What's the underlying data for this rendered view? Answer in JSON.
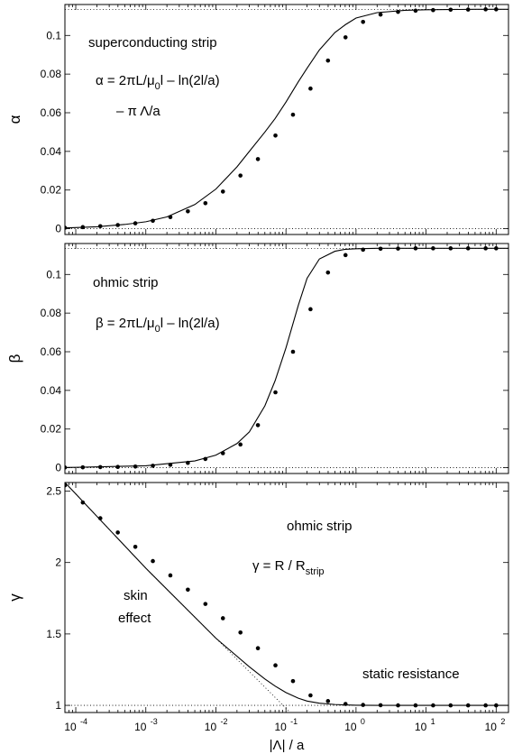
{
  "chart_data": [
    {
      "type": "line",
      "xscale": "log",
      "xlim": [
        7e-05,
        150
      ],
      "ylim": [
        -0.003,
        0.116
      ],
      "ylabel": "α",
      "yticks": [
        0,
        0.02,
        0.04,
        0.06,
        0.08,
        0.1
      ],
      "ytick_labels": [
        "0",
        "0.02",
        "0.04",
        "0.06",
        "0.08",
        "0.1"
      ],
      "reference_lines": [
        0,
        0.1135
      ],
      "annotations": [
        {
          "text": "superconducting strip"
        },
        {
          "text": "α = 2πL/μ",
          "sub": "0",
          "after": "l – ln(2l/a)"
        },
        {
          "text": "– π Λ/a"
        }
      ],
      "series": [
        {
          "style": "solid-line",
          "x": [
            7e-05,
            0.0001,
            0.0002,
            0.0005,
            0.001,
            0.002,
            0.005,
            0.01,
            0.02,
            0.03,
            0.05,
            0.07,
            0.1,
            0.15,
            0.2,
            0.3,
            0.5,
            0.7,
            1,
            2,
            5,
            10,
            20,
            50,
            100,
            150
          ],
          "y": [
            0.0004,
            0.0006,
            0.001,
            0.0022,
            0.0036,
            0.0061,
            0.0125,
            0.0205,
            0.032,
            0.04,
            0.05,
            0.057,
            0.0655,
            0.076,
            0.083,
            0.0925,
            0.1015,
            0.1055,
            0.109,
            0.1118,
            0.113,
            0.1133,
            0.1134,
            0.1135,
            0.1135,
            0.1135
          ]
        },
        {
          "style": "dots",
          "x": [
            7e-05,
            0.000126,
            0.000224,
            0.000398,
            0.000708,
            0.00126,
            0.00224,
            0.00398,
            0.00708,
            0.0126,
            0.0224,
            0.0398,
            0.0708,
            0.126,
            0.224,
            0.398,
            0.708,
            1.26,
            2.24,
            3.98,
            7.08,
            12.6,
            22.4,
            39.8,
            70.8,
            100
          ],
          "y": [
            0.0005,
            0.0008,
            0.0013,
            0.0019,
            0.0028,
            0.0041,
            0.006,
            0.009,
            0.0132,
            0.0192,
            0.0275,
            0.036,
            0.0482,
            0.059,
            0.0725,
            0.087,
            0.099,
            0.107,
            0.1108,
            0.1122,
            0.1128,
            0.1131,
            0.1133,
            0.1134,
            0.1135,
            0.1135
          ]
        }
      ]
    },
    {
      "type": "line",
      "xscale": "log",
      "xlim": [
        7e-05,
        150
      ],
      "ylim": [
        -0.003,
        0.116
      ],
      "ylabel": "β",
      "yticks": [
        0,
        0.02,
        0.04,
        0.06,
        0.08,
        0.1
      ],
      "ytick_labels": [
        "0",
        "0.02",
        "0.04",
        "0.06",
        "0.08",
        "0.1"
      ],
      "reference_lines": [
        0,
        0.1135
      ],
      "annotations": [
        {
          "text": "ohmic strip"
        },
        {
          "text": "β = 2πL/μ",
          "sub": "0",
          "after": "l – ln(2l/a)"
        }
      ],
      "series": [
        {
          "style": "solid-line",
          "x": [
            7e-05,
            0.0001,
            0.001,
            0.005,
            0.01,
            0.02,
            0.03,
            0.05,
            0.07,
            0.1,
            0.15,
            0.2,
            0.3,
            0.5,
            0.7,
            1,
            2,
            5,
            150
          ],
          "y": [
            0.0001,
            0.0002,
            0.001,
            0.0035,
            0.0065,
            0.0125,
            0.0185,
            0.032,
            0.045,
            0.062,
            0.084,
            0.098,
            0.108,
            0.112,
            0.113,
            0.1133,
            0.1135,
            0.1135,
            0.1135
          ]
        },
        {
          "style": "dots",
          "x": [
            7e-05,
            0.000126,
            0.000224,
            0.000398,
            0.000708,
            0.00126,
            0.00224,
            0.00398,
            0.00708,
            0.0126,
            0.0224,
            0.0398,
            0.0708,
            0.126,
            0.224,
            0.398,
            0.708,
            1.26,
            2.24,
            3.98,
            7.08,
            12.6,
            22.4,
            39.8,
            70.8,
            100
          ],
          "y": [
            0.0001,
            0.0002,
            0.0003,
            0.0004,
            0.0006,
            0.001,
            0.0015,
            0.0025,
            0.0045,
            0.0075,
            0.012,
            0.022,
            0.039,
            0.06,
            0.082,
            0.101,
            0.11,
            0.1128,
            0.1133,
            0.1134,
            0.1135,
            0.1135,
            0.1135,
            0.1135,
            0.1135,
            0.1135
          ]
        }
      ]
    },
    {
      "type": "line",
      "xscale": "log",
      "xlim": [
        7e-05,
        150
      ],
      "ylim": [
        0.95,
        2.56
      ],
      "xlabel": "|Λ| / a",
      "ylabel": "γ",
      "yticks": [
        1,
        1.5,
        2,
        2.5
      ],
      "ytick_labels": [
        "1",
        "1.5",
        "2",
        "2.5"
      ],
      "xticks": [
        0.0001,
        0.001,
        0.01,
        0.1,
        1,
        10,
        100
      ],
      "xtick_labels": [
        [
          "10",
          "-4"
        ],
        [
          "10",
          "-3"
        ],
        [
          "10",
          "-2"
        ],
        [
          "10",
          "-1"
        ],
        [
          "10",
          "0"
        ],
        [
          "10",
          "1"
        ],
        [
          "10",
          "2"
        ]
      ],
      "reference_lines": [
        1
      ],
      "annotations": [
        {
          "text": "ohmic strip"
        },
        {
          "text": "γ = R / R",
          "sub": "strip"
        },
        {
          "text": "skin"
        },
        {
          "text": "effect"
        },
        {
          "text": "static resistance"
        }
      ],
      "series": [
        {
          "style": "solid-line",
          "x": [
            7e-05,
            0.0001,
            0.001,
            0.01,
            0.03,
            0.05,
            0.07,
            0.1,
            0.15,
            0.2,
            0.3,
            0.5,
            0.7,
            1,
            2,
            5,
            150
          ],
          "y": [
            2.56,
            2.48,
            1.96,
            1.47,
            1.27,
            1.185,
            1.135,
            1.09,
            1.05,
            1.03,
            1.015,
            1.006,
            1.003,
            1.001,
            1.0,
            1.0,
            1.0
          ]
        },
        {
          "style": "dotted-asymptote",
          "x": [
            7e-05,
            0.0001,
            0.001,
            0.01,
            0.1,
            0.3
          ],
          "y": [
            2.56,
            2.48,
            1.96,
            1.47,
            0.98,
            0.75
          ]
        },
        {
          "style": "dots",
          "x": [
            7e-05,
            0.000126,
            0.000224,
            0.000398,
            0.000708,
            0.00126,
            0.00224,
            0.00398,
            0.00708,
            0.0126,
            0.0224,
            0.0398,
            0.0708,
            0.126,
            0.224,
            0.398,
            0.708,
            1.26,
            2.24,
            3.98,
            7.08,
            12.6,
            22.4,
            39.8,
            70.8,
            100
          ],
          "y": [
            2.54,
            2.42,
            2.31,
            2.21,
            2.11,
            2.01,
            1.91,
            1.81,
            1.71,
            1.61,
            1.51,
            1.4,
            1.28,
            1.17,
            1.07,
            1.03,
            1.01,
            1.003,
            1.001,
            1.0,
            1.0,
            1.0,
            1.0,
            1.0,
            1.0,
            1.0
          ]
        }
      ]
    }
  ]
}
